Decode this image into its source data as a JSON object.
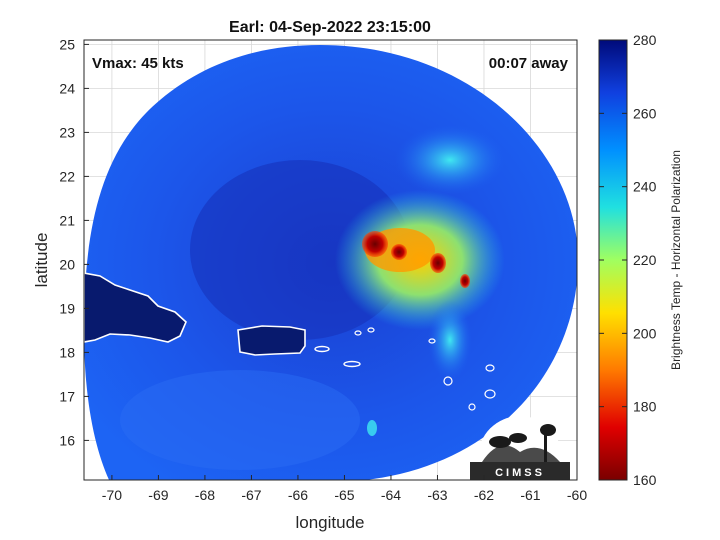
{
  "title": "Earl: 04-Sep-2022 23:15:00",
  "vmax_label": "Vmax: 45 kts",
  "time_away": "00:07 away",
  "xlabel": "longitude",
  "ylabel": "latitude",
  "colorbar_label": "Brightness Temp - Horizontal Polarization",
  "logo_text": "CIMSS",
  "x_ticks": [
    "-70",
    "-69",
    "-68",
    "-67",
    "-66",
    "-65",
    "-64",
    "-63",
    "-62",
    "-61",
    "-60"
  ],
  "y_ticks": [
    "25",
    "24",
    "23",
    "22",
    "21",
    "20",
    "19",
    "18",
    "17",
    "16"
  ],
  "colorbar_ticks": [
    "280",
    "260",
    "240",
    "220",
    "200",
    "180",
    "160"
  ],
  "map_extent": {
    "lon": [
      -70.6,
      -60
    ],
    "lat": [
      15.1,
      25.1
    ]
  },
  "colorbar_range": [
    160,
    280
  ],
  "colors": {
    "cold_background": "#1550e6",
    "warm_core": "#8a0000",
    "land": "#081a6e",
    "coast": "#ffffff"
  }
}
